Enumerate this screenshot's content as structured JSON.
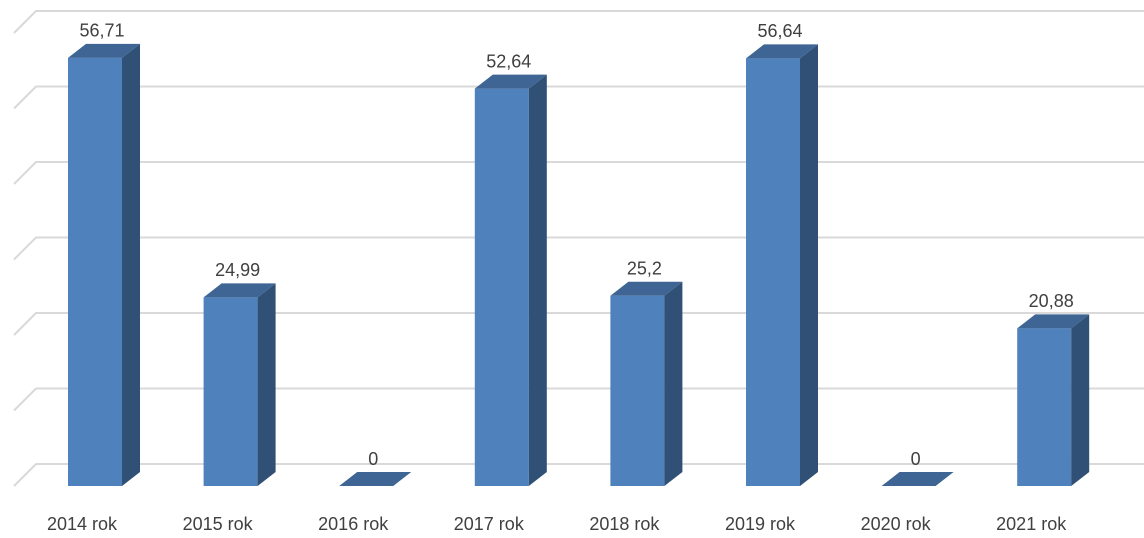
{
  "chart_data": {
    "type": "bar3d",
    "categories": [
      "2014 rok",
      "2015 rok",
      "2016 rok",
      "2017 rok",
      "2018 rok",
      "2019 rok",
      "2020 rok",
      "2021 rok"
    ],
    "values": [
      56.71,
      24.99,
      0,
      52.64,
      25.2,
      56.64,
      0,
      20.88
    ],
    "value_labels": [
      "56,71",
      "24,99",
      "0",
      "52,64",
      "25,2",
      "56,64",
      "0",
      "20,88"
    ],
    "color": "#4f81bd",
    "ylim": [
      0,
      60
    ],
    "yticks": [
      0,
      10,
      20,
      30,
      40,
      50,
      60
    ],
    "grid": true
  }
}
